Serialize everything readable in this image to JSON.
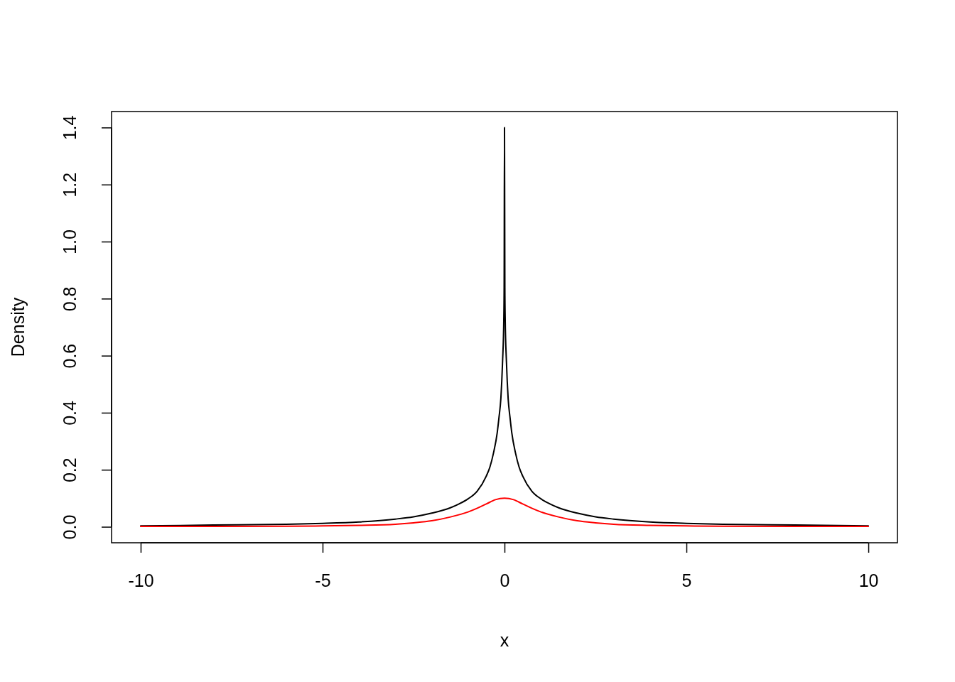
{
  "chart_data": {
    "type": "line",
    "xlabel": "x",
    "ylabel": "Density",
    "xlim": [
      -10.8,
      10.8
    ],
    "ylim": [
      -0.056,
      1.456
    ],
    "xticks": [
      -10,
      -5,
      0,
      5,
      10
    ],
    "yticks": [
      {
        "value": 0,
        "label": "0.0"
      },
      {
        "value": 0.2,
        "label": "0.2"
      },
      {
        "value": 0.4,
        "label": "0.4"
      },
      {
        "value": 0.6,
        "label": "0.6"
      },
      {
        "value": 0.8,
        "label": "0.8"
      },
      {
        "value": 1,
        "label": "1.0"
      },
      {
        "value": 1.2,
        "label": "1.2"
      },
      {
        "value": 1.4,
        "label": "1.4"
      }
    ],
    "grid": false,
    "marker": "none",
    "line_style": "solid",
    "series": [
      {
        "color": "#000000",
        "x": [
          -10,
          -8,
          -6,
          -5,
          -4,
          -3,
          -2.5,
          -2,
          -1.5,
          -1.25,
          -1,
          -0.75,
          -0.5,
          -0.4,
          -0.3,
          -0.2,
          -0.15,
          -0.1,
          -0.075,
          -0.05,
          -0.03,
          -0.02,
          -0.01,
          0,
          0.01,
          0.02,
          0.03,
          0.05,
          0.075,
          0.1,
          0.15,
          0.2,
          0.3,
          0.4,
          0.5,
          0.75,
          1,
          1.25,
          1.5,
          2,
          2.5,
          3,
          4,
          5,
          6,
          8,
          10
        ],
        "values": [
          0.003,
          0.006,
          0.009,
          0.012,
          0.017,
          0.027,
          0.035,
          0.048,
          0.066,
          0.08,
          0.098,
          0.125,
          0.178,
          0.21,
          0.26,
          0.33,
          0.385,
          0.45,
          0.51,
          0.59,
          0.66,
          0.72,
          0.84,
          1.4,
          0.84,
          0.72,
          0.66,
          0.59,
          0.51,
          0.45,
          0.385,
          0.33,
          0.26,
          0.21,
          0.178,
          0.125,
          0.098,
          0.08,
          0.066,
          0.048,
          0.035,
          0.027,
          0.017,
          0.012,
          0.009,
          0.006,
          0.003
        ]
      },
      {
        "color": "#ff0000",
        "x": [
          -10,
          -8,
          -6,
          -5,
          -4,
          -3,
          -2.5,
          -2,
          -1.5,
          -1,
          -0.75,
          -0.5,
          -0.25,
          0,
          0.25,
          0.5,
          0.75,
          1,
          1.5,
          2,
          2.5,
          3,
          4,
          5,
          6,
          8,
          10
        ],
        "values": [
          0.001,
          0.001,
          0.002,
          0.003,
          0.005,
          0.009,
          0.014,
          0.021,
          0.034,
          0.052,
          0.065,
          0.08,
          0.095,
          0.1,
          0.095,
          0.08,
          0.065,
          0.052,
          0.034,
          0.021,
          0.014,
          0.009,
          0.005,
          0.003,
          0.002,
          0.001,
          0.001
        ]
      }
    ]
  }
}
